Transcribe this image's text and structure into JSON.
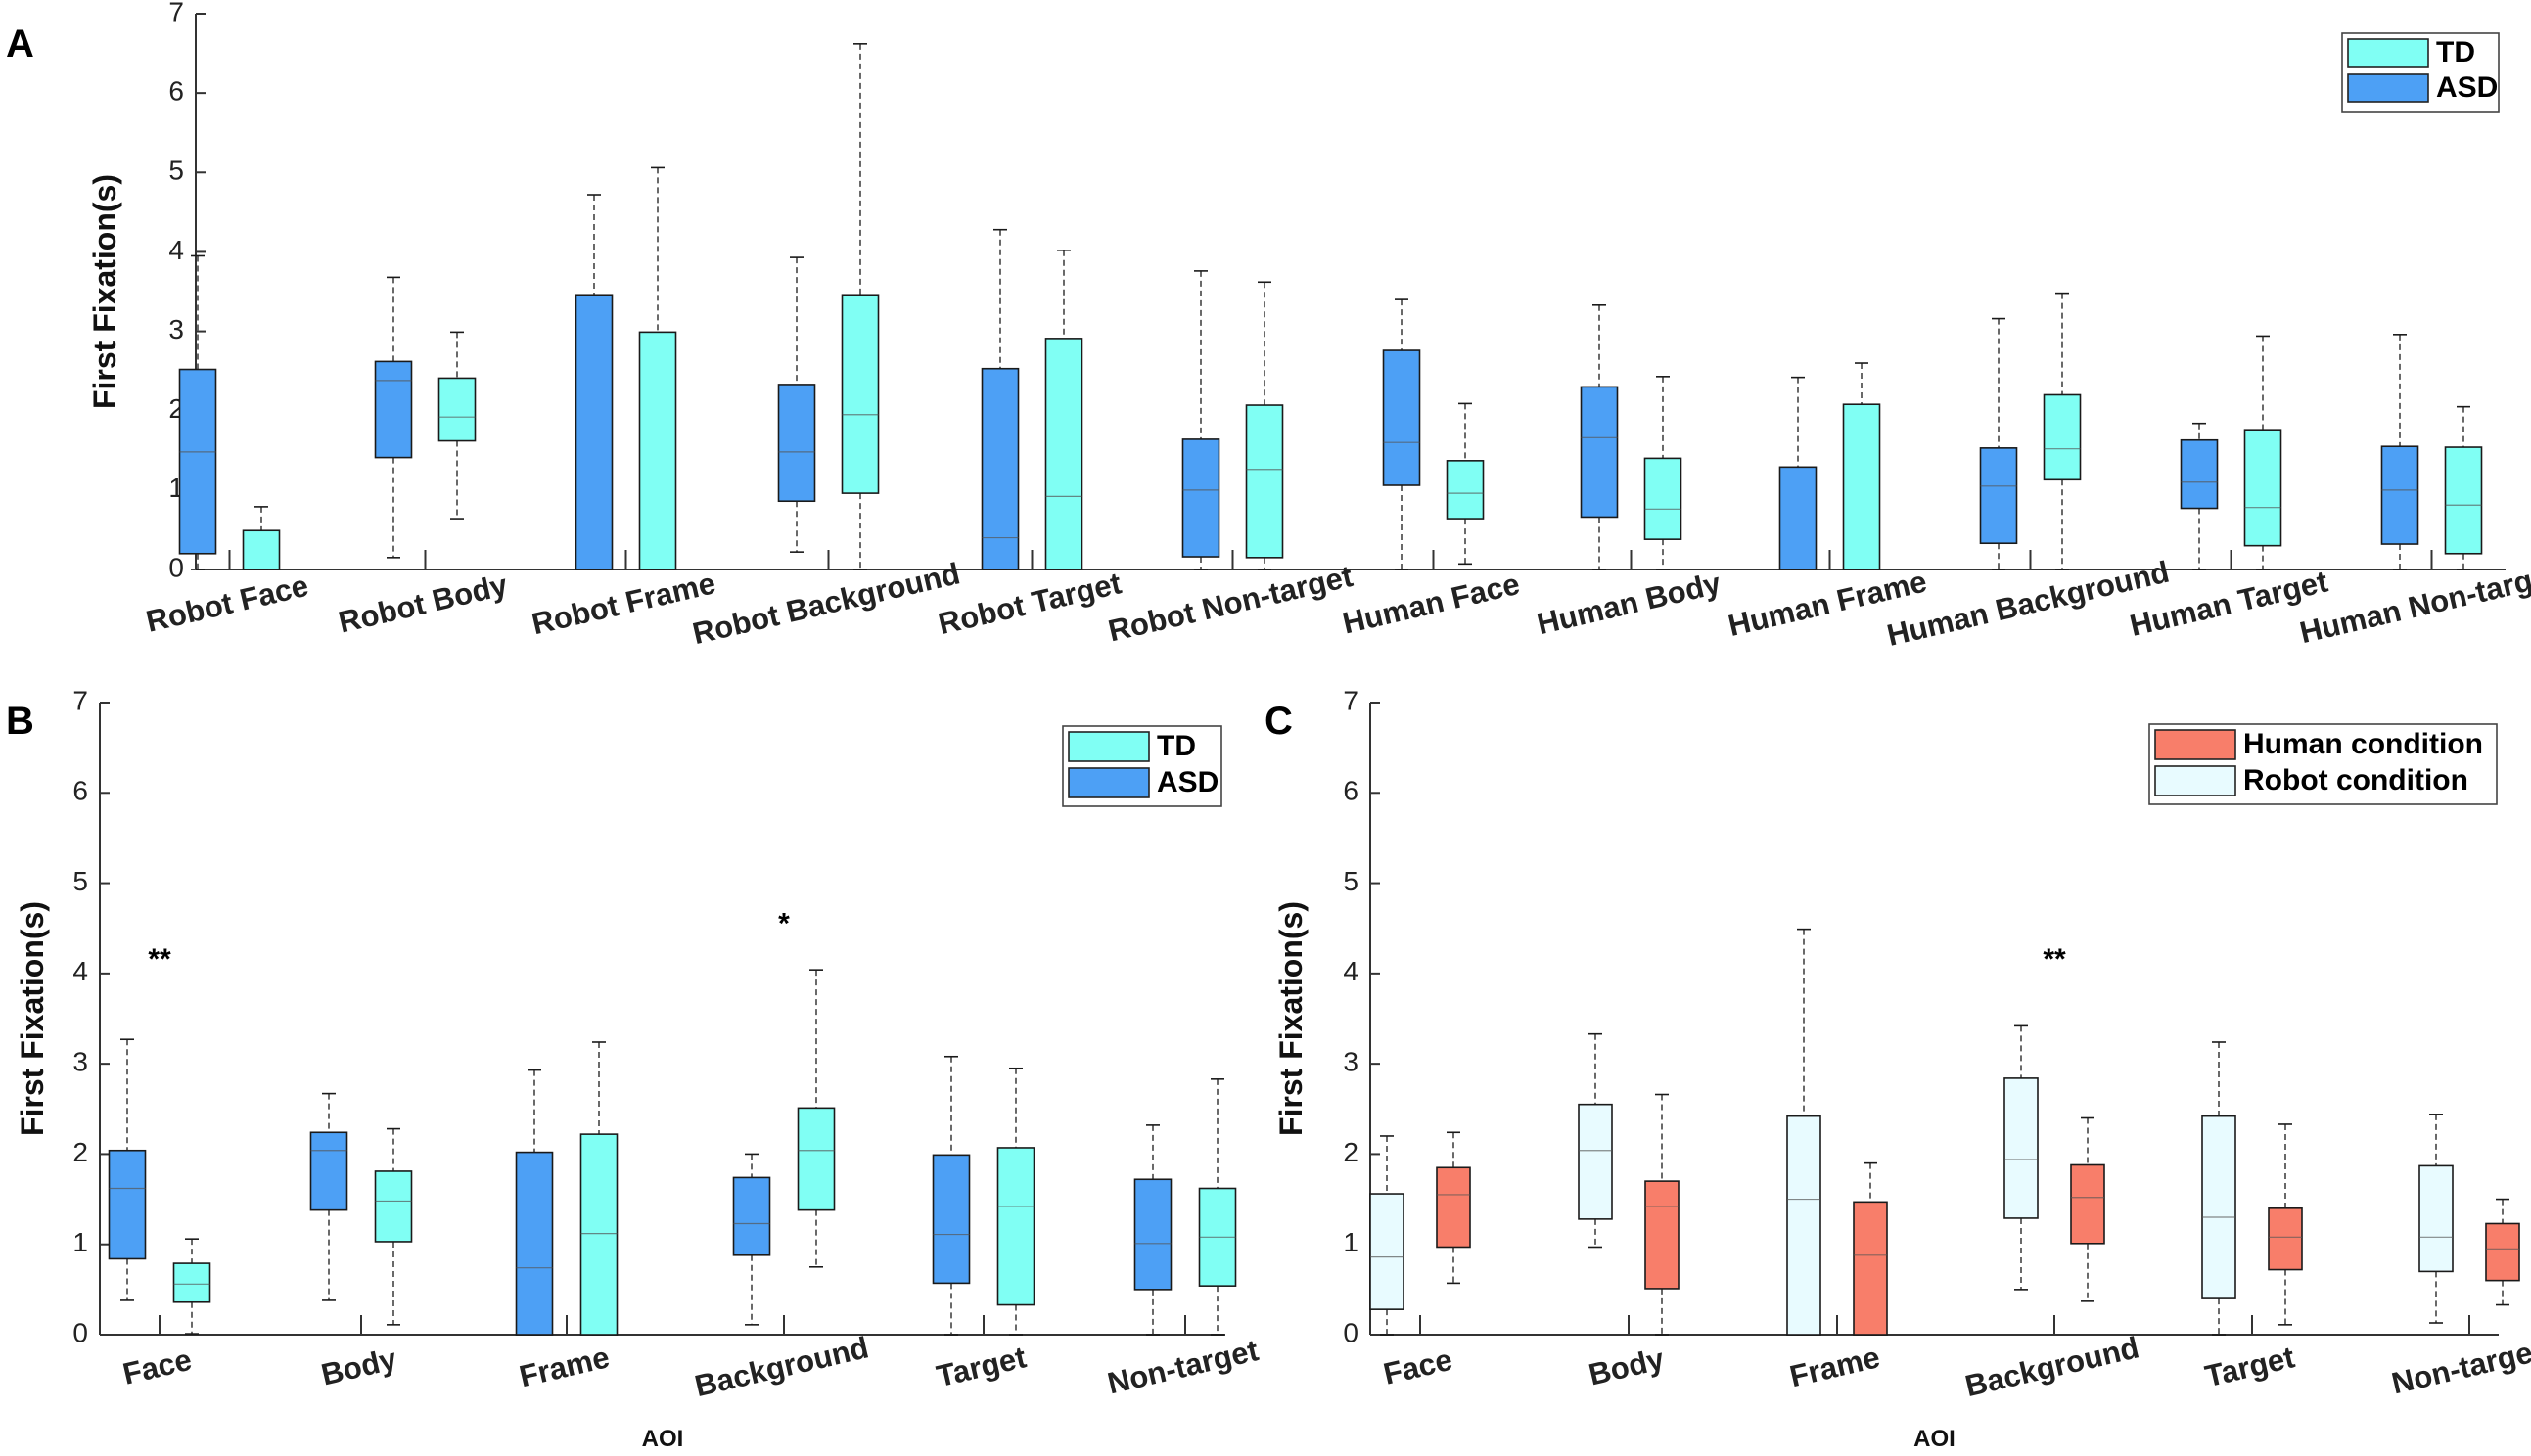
{
  "colors": {
    "td": "#80FFF4",
    "asd": "#4DA0F5",
    "human": "#F87E6A",
    "robot": "#E8FBFF",
    "box_stroke": "#1a1a1a",
    "whisker": "#444444",
    "axis": "#333333"
  },
  "chart_data": [
    {
      "id": "A",
      "panel_label": "A",
      "type": "box",
      "ylabel": "First Fixation(s)",
      "xlabel": "",
      "ylim": [
        0,
        7
      ],
      "yticks": [
        "0",
        "1",
        "2",
        "3",
        "4",
        "5",
        "6",
        "7"
      ],
      "legend": {
        "position": "top-right",
        "entries": [
          {
            "label": "TD",
            "color_key": "td"
          },
          {
            "label": "ASD",
            "color_key": "asd"
          }
        ]
      },
      "categories": [
        "Robot Face",
        "Robot Body",
        "Robot Frame",
        "Robot Background",
        "Robot Target",
        "Robot Non-target",
        "Human Face",
        "Human Body",
        "Human Frame",
        "Human Background",
        "Human Target",
        "Human Non-target"
      ],
      "series": [
        {
          "name": "ASD",
          "color_key": "asd",
          "boxes": [
            {
              "min": 0,
              "q1": 0.2,
              "median": 1.48,
              "q3": 2.52,
              "max": 3.95
            },
            {
              "min": 0.15,
              "q1": 1.41,
              "median": 2.38,
              "q3": 2.62,
              "max": 3.68
            },
            {
              "min": 0,
              "q1": 0,
              "median": 0,
              "q3": 3.46,
              "max": 4.72
            },
            {
              "min": 0.22,
              "q1": 0.86,
              "median": 1.48,
              "q3": 2.33,
              "max": 3.93
            },
            {
              "min": 0,
              "q1": 0,
              "median": 0.4,
              "q3": 2.53,
              "max": 4.28
            },
            {
              "min": 0,
              "q1": 0.16,
              "median": 1.0,
              "q3": 1.64,
              "max": 3.76
            },
            {
              "min": 0,
              "q1": 1.06,
              "median": 1.6,
              "q3": 2.76,
              "max": 3.4
            },
            {
              "min": 0,
              "q1": 0.66,
              "median": 1.66,
              "q3": 2.3,
              "max": 3.33
            },
            {
              "min": 0,
              "q1": 0,
              "median": 0,
              "q3": 1.29,
              "max": 2.42
            },
            {
              "min": 0,
              "q1": 0.33,
              "median": 1.05,
              "q3": 1.53,
              "max": 3.16
            },
            {
              "min": 0,
              "q1": 0.77,
              "median": 1.1,
              "q3": 1.63,
              "max": 1.84
            },
            {
              "min": 0,
              "q1": 0.32,
              "median": 1.0,
              "q3": 1.55,
              "max": 2.96
            }
          ]
        },
        {
          "name": "TD",
          "color_key": "td",
          "boxes": [
            {
              "min": 0,
              "q1": 0,
              "median": 0,
              "q3": 0.49,
              "max": 0.79
            },
            {
              "min": 0.64,
              "q1": 1.62,
              "median": 1.92,
              "q3": 2.41,
              "max": 2.99
            },
            {
              "min": 0,
              "q1": 0,
              "median": 0,
              "q3": 2.99,
              "max": 5.06
            },
            {
              "min": 0,
              "q1": 0.96,
              "median": 1.95,
              "q3": 3.46,
              "max": 6.62
            },
            {
              "min": 0,
              "q1": 0,
              "median": 0.92,
              "q3": 2.91,
              "max": 4.02
            },
            {
              "min": 0,
              "q1": 0.15,
              "median": 1.26,
              "q3": 2.07,
              "max": 3.62
            },
            {
              "min": 0.07,
              "q1": 0.64,
              "median": 0.96,
              "q3": 1.37,
              "max": 2.09
            },
            {
              "min": 0,
              "q1": 0.38,
              "median": 0.76,
              "q3": 1.4,
              "max": 2.43
            },
            {
              "min": 0,
              "q1": 0,
              "median": 0,
              "q3": 2.08,
              "max": 2.6
            },
            {
              "min": 0,
              "q1": 1.13,
              "median": 1.52,
              "q3": 2.2,
              "max": 3.48
            },
            {
              "min": 0,
              "q1": 0.3,
              "median": 0.78,
              "q3": 1.76,
              "max": 2.94
            },
            {
              "min": 0,
              "q1": 0.2,
              "median": 0.81,
              "q3": 1.54,
              "max": 2.05
            }
          ]
        }
      ],
      "annotations": []
    },
    {
      "id": "B",
      "panel_label": "B",
      "type": "box",
      "ylabel": "First Fixation(s)",
      "xlabel": "AOI",
      "ylim": [
        0,
        7
      ],
      "yticks": [
        "0",
        "1",
        "2",
        "3",
        "4",
        "5",
        "6",
        "7"
      ],
      "legend": {
        "position": "top-right",
        "entries": [
          {
            "label": "TD",
            "color_key": "td"
          },
          {
            "label": "ASD",
            "color_key": "asd"
          }
        ]
      },
      "categories": [
        "Face",
        "Body",
        "Frame",
        "Background",
        "Target",
        "Non-target"
      ],
      "series": [
        {
          "name": "ASD",
          "color_key": "asd",
          "boxes": [
            {
              "min": 0.38,
              "q1": 0.84,
              "median": 1.62,
              "q3": 2.04,
              "max": 3.27
            },
            {
              "min": 0.38,
              "q1": 1.38,
              "median": 2.04,
              "q3": 2.24,
              "max": 2.67
            },
            {
              "min": 0,
              "q1": 0,
              "median": 0.74,
              "q3": 2.02,
              "max": 2.93
            },
            {
              "min": 0.11,
              "q1": 0.88,
              "median": 1.23,
              "q3": 1.74,
              "max": 2.0
            },
            {
              "min": 0,
              "q1": 0.57,
              "median": 1.11,
              "q3": 1.99,
              "max": 3.08
            },
            {
              "min": 0,
              "q1": 0.5,
              "median": 1.01,
              "q3": 1.72,
              "max": 2.32
            }
          ]
        },
        {
          "name": "TD",
          "color_key": "td",
          "boxes": [
            {
              "min": 0.01,
              "q1": 0.36,
              "median": 0.56,
              "q3": 0.79,
              "max": 1.06
            },
            {
              "min": 0.11,
              "q1": 1.03,
              "median": 1.48,
              "q3": 1.81,
              "max": 2.28
            },
            {
              "min": 0,
              "q1": 0,
              "median": 1.12,
              "q3": 2.22,
              "max": 3.24
            },
            {
              "min": 0.75,
              "q1": 1.38,
              "median": 2.04,
              "q3": 2.51,
              "max": 4.04
            },
            {
              "min": 0,
              "q1": 0.33,
              "median": 1.42,
              "q3": 2.07,
              "max": 2.95
            },
            {
              "min": 0,
              "q1": 0.54,
              "median": 1.08,
              "q3": 1.62,
              "max": 2.83
            }
          ]
        }
      ],
      "annotations": [
        {
          "text": "**",
          "category_index": 0,
          "y": 4.05
        },
        {
          "text": "*",
          "category_index": 3,
          "y": 4.45
        }
      ]
    },
    {
      "id": "C",
      "panel_label": "C",
      "type": "box",
      "ylabel": "First Fixation(s)",
      "xlabel": "AOI",
      "ylim": [
        0,
        7
      ],
      "yticks": [
        "0",
        "1",
        "2",
        "3",
        "4",
        "5",
        "6",
        "7"
      ],
      "legend": {
        "position": "top-right",
        "entries": [
          {
            "label": "Human condition",
            "color_key": "human"
          },
          {
            "label": "Robot condition",
            "color_key": "robot"
          }
        ]
      },
      "categories": [
        "Face",
        "Body",
        "Frame",
        "Background",
        "Target",
        "Non-target"
      ],
      "series": [
        {
          "name": "Robot condition",
          "color_key": "robot",
          "boxes": [
            {
              "min": 0,
              "q1": 0.28,
              "median": 0.86,
              "q3": 1.56,
              "max": 2.2
            },
            {
              "min": 0.97,
              "q1": 1.28,
              "median": 2.04,
              "q3": 2.55,
              "max": 3.33
            },
            {
              "min": 0,
              "q1": 0,
              "median": 1.5,
              "q3": 2.42,
              "max": 4.49
            },
            {
              "min": 0.5,
              "q1": 1.29,
              "median": 1.94,
              "q3": 2.84,
              "max": 3.42
            },
            {
              "min": 0,
              "q1": 0.4,
              "median": 1.3,
              "q3": 2.42,
              "max": 3.24
            },
            {
              "min": 0.13,
              "q1": 0.7,
              "median": 1.08,
              "q3": 1.87,
              "max": 2.44
            }
          ]
        },
        {
          "name": "Human condition",
          "color_key": "human",
          "boxes": [
            {
              "min": 0.57,
              "q1": 0.97,
              "median": 1.55,
              "q3": 1.85,
              "max": 2.24
            },
            {
              "min": 0,
              "q1": 0.51,
              "median": 1.42,
              "q3": 1.7,
              "max": 2.66
            },
            {
              "min": 0,
              "q1": 0,
              "median": 0.88,
              "q3": 1.47,
              "max": 1.9
            },
            {
              "min": 0.37,
              "q1": 1.01,
              "median": 1.52,
              "q3": 1.88,
              "max": 2.4
            },
            {
              "min": 0.11,
              "q1": 0.72,
              "median": 1.08,
              "q3": 1.4,
              "max": 2.33
            },
            {
              "min": 0.33,
              "q1": 0.6,
              "median": 0.95,
              "q3": 1.23,
              "max": 1.5
            }
          ]
        }
      ],
      "annotations": [
        {
          "text": "**",
          "category_index": 3,
          "y": 4.05
        }
      ]
    }
  ]
}
